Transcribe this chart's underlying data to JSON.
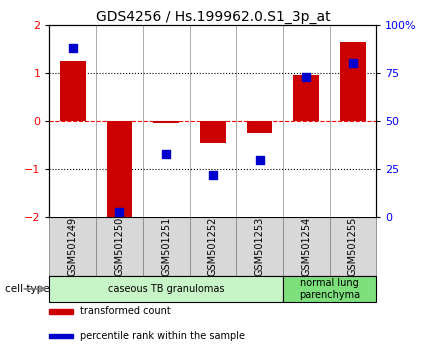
{
  "title": "GDS4256 / Hs.199962.0.S1_3p_at",
  "samples": [
    "GSM501249",
    "GSM501250",
    "GSM501251",
    "GSM501252",
    "GSM501253",
    "GSM501254",
    "GSM501255"
  ],
  "transformed_count": [
    1.25,
    -2.1,
    -0.05,
    -0.45,
    -0.25,
    0.95,
    1.65
  ],
  "percentile_rank": [
    88,
    3,
    33,
    22,
    30,
    73,
    80
  ],
  "bar_color": "#cc0000",
  "dot_color": "#0000cc",
  "ylim_left": [
    -2,
    2
  ],
  "yticks_left": [
    -2,
    -1,
    0,
    1,
    2
  ],
  "yticks_right": [
    0,
    25,
    50,
    75,
    100
  ],
  "yticklabels_right": [
    "0",
    "25",
    "50",
    "75",
    "100%"
  ],
  "hlines": [
    -1,
    0,
    1
  ],
  "hline_styles": [
    "dotted",
    "dashed",
    "dotted"
  ],
  "hline_colors": [
    "black",
    "red",
    "black"
  ],
  "groups": [
    {
      "label": "caseous TB granulomas",
      "indices": [
        0,
        1,
        2,
        3,
        4
      ],
      "color": "#c8f5c8"
    },
    {
      "label": "normal lung\nparenchyma",
      "indices": [
        5,
        6
      ],
      "color": "#7de07d"
    }
  ],
  "cell_type_label": "cell type",
  "legend_items": [
    {
      "color": "#cc0000",
      "label": "transformed count"
    },
    {
      "color": "#0000cc",
      "label": "percentile rank within the sample"
    }
  ],
  "bar_width": 0.55,
  "background_color": "#ffffff",
  "title_fontsize": 10,
  "tick_fontsize": 8,
  "label_fontsize": 7,
  "sample_box_color": "#d8d8d8",
  "sample_box_edge": "#888888"
}
